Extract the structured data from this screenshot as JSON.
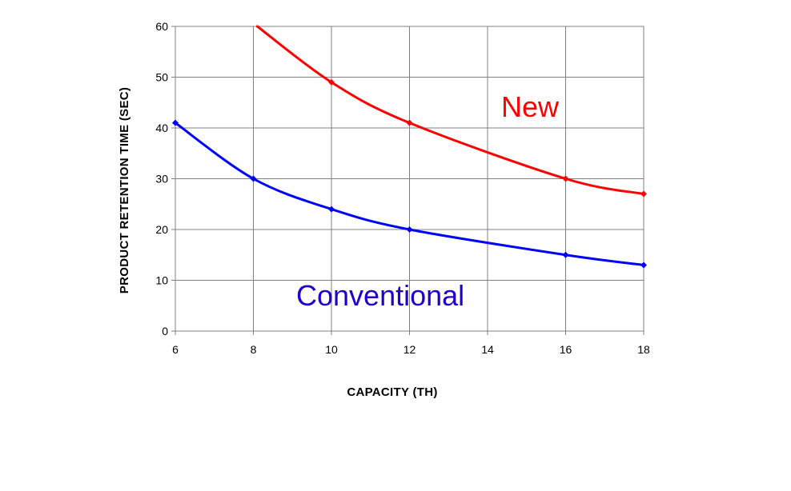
{
  "chart_data": {
    "type": "line",
    "title": "",
    "xlabel": "CAPACITY  (TH)",
    "ylabel": "PRODUCT RETENTION TIME (SEC)",
    "xlim": [
      6,
      18
    ],
    "ylim": [
      0,
      60
    ],
    "x_ticks": [
      6,
      8,
      10,
      12,
      14,
      16,
      18
    ],
    "y_ticks": [
      0,
      10,
      20,
      30,
      40,
      50,
      60
    ],
    "grid": true,
    "series": [
      {
        "name": "New",
        "color": "#ff0000",
        "x": [
          8.1,
          10,
          12,
          16,
          18
        ],
        "y": [
          60,
          49,
          41,
          30,
          27
        ],
        "marker": "diamond"
      },
      {
        "name": "Conventional",
        "color": "#0000ff",
        "x": [
          6,
          8,
          10,
          12,
          16,
          18
        ],
        "y": [
          41,
          30,
          24,
          20,
          15,
          13
        ],
        "marker": "diamond"
      }
    ]
  }
}
